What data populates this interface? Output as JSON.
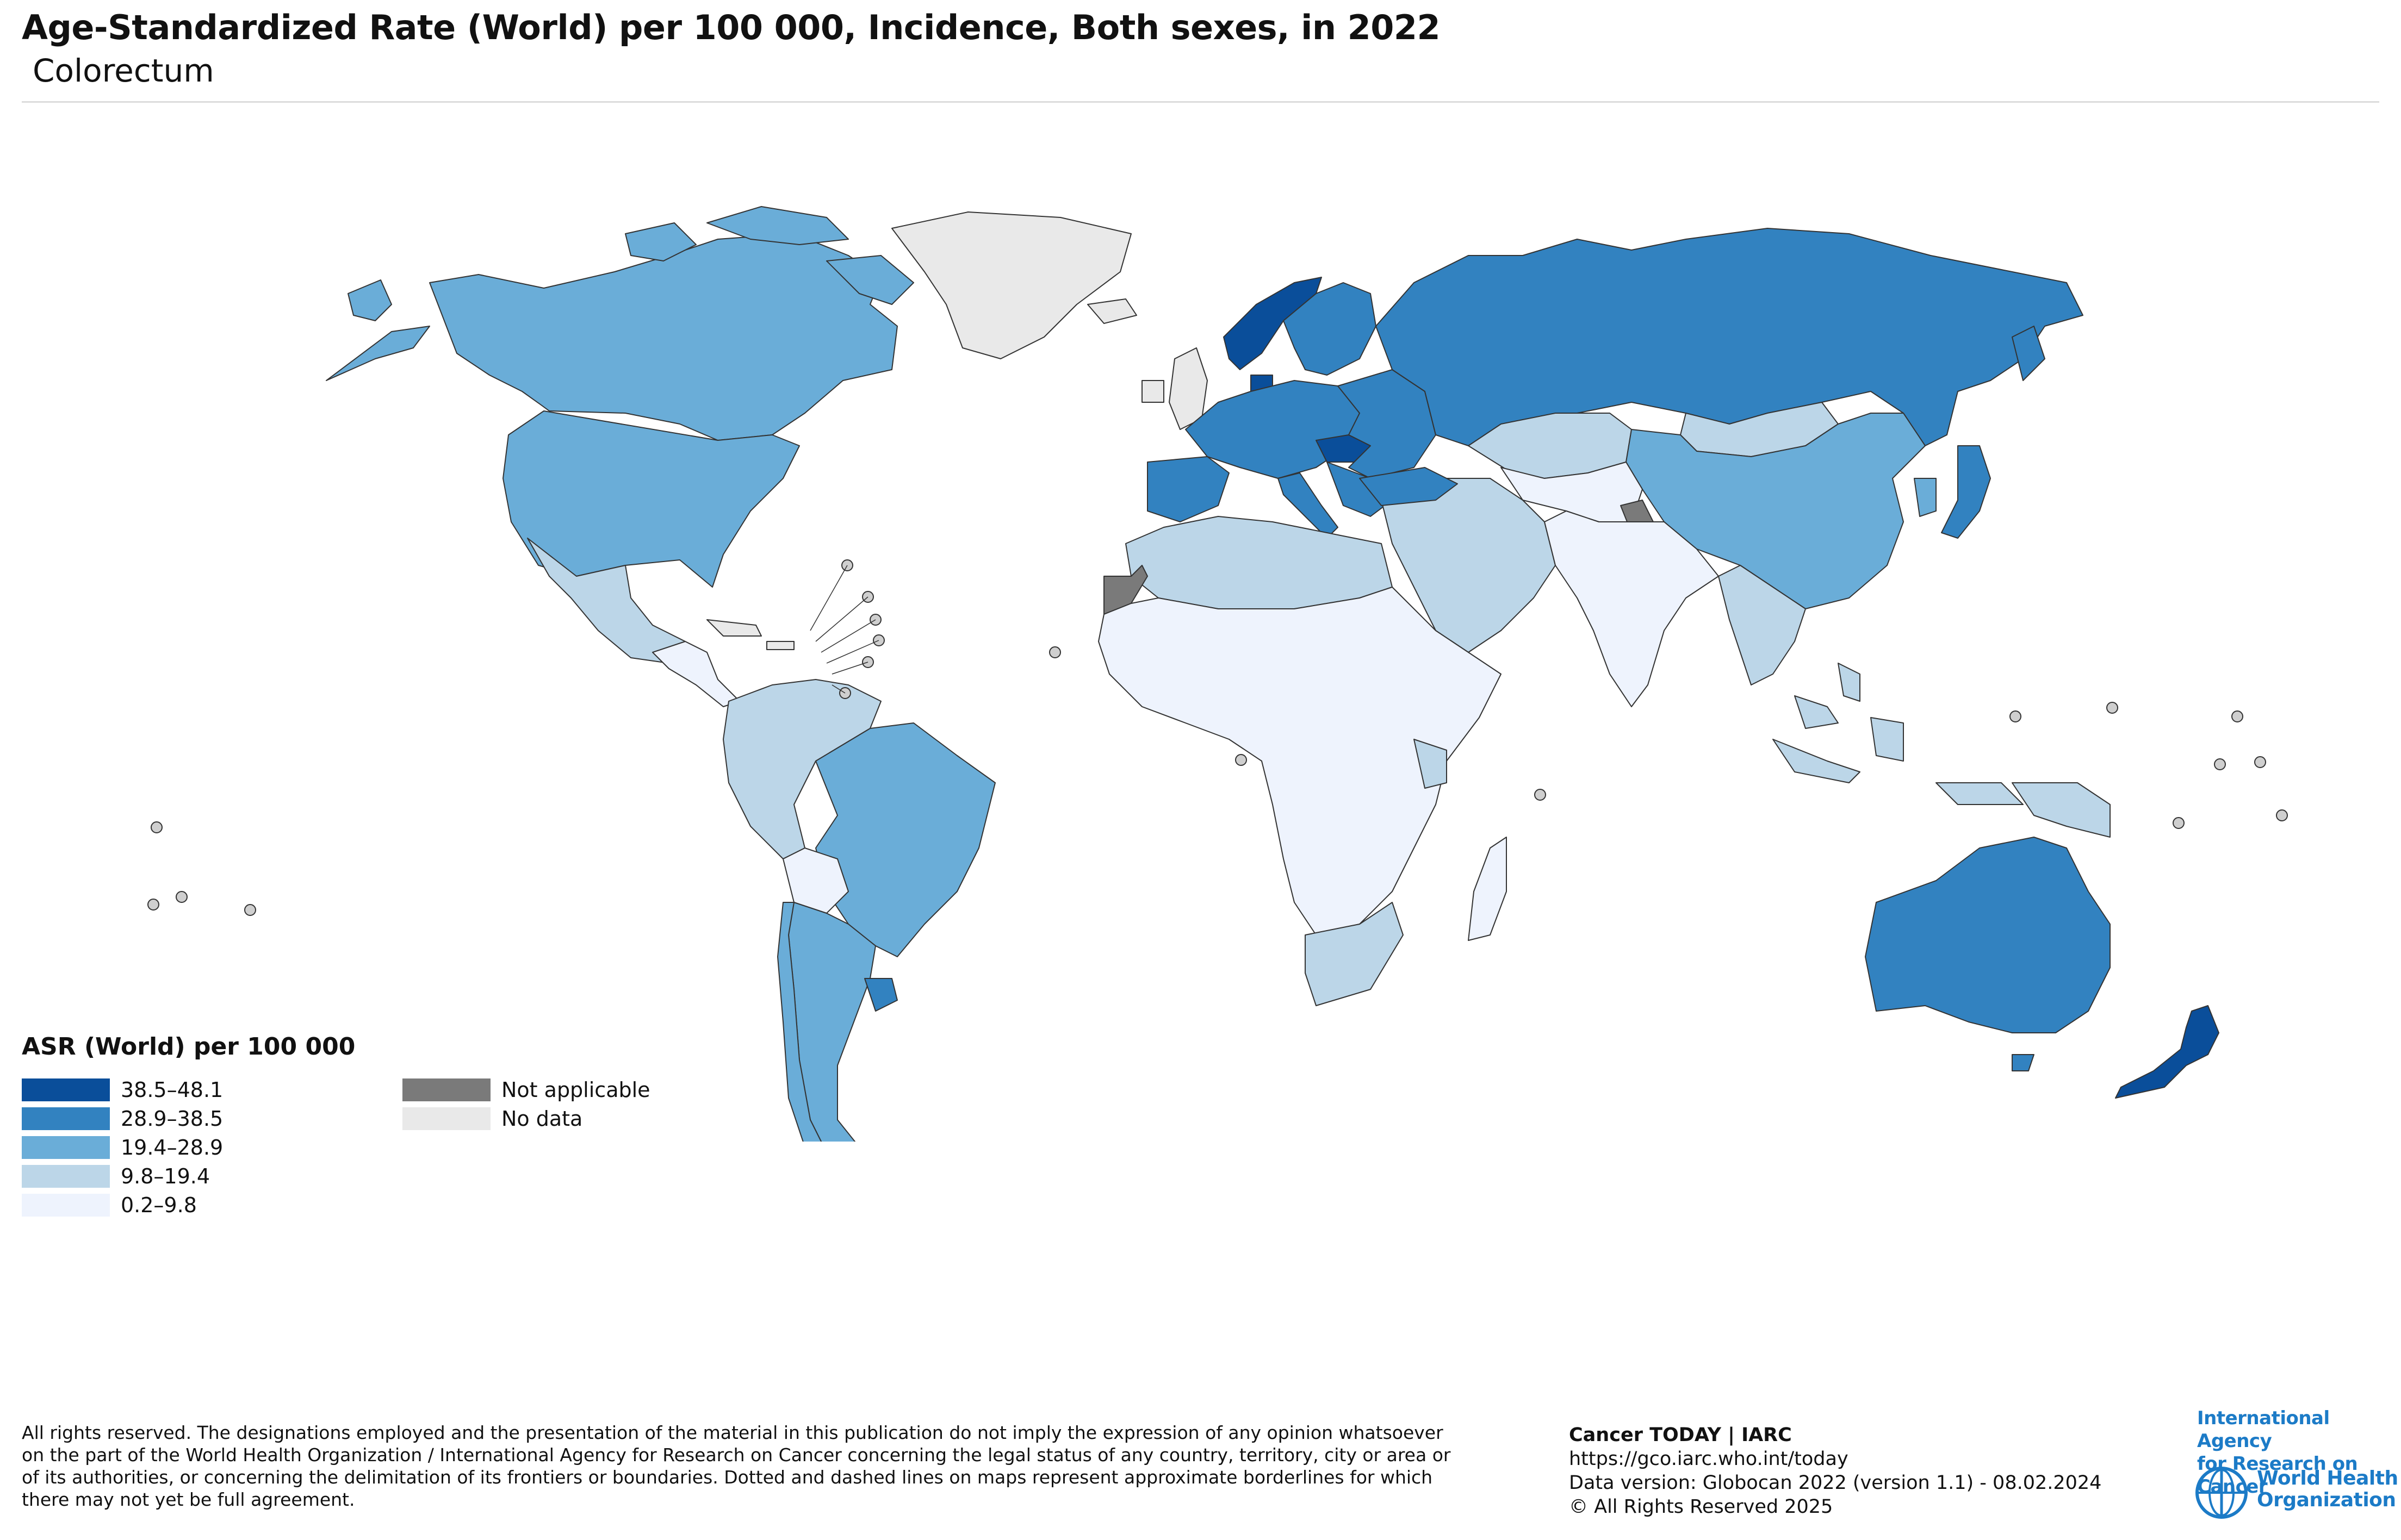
{
  "header": {
    "title": "Age-Standardized Rate (World) per 100 000, Incidence, Both sexes, in 2022",
    "subtitle": "Colorectum"
  },
  "legend": {
    "title": "ASR (World) per 100 000",
    "classes": [
      {
        "label": "38.5–48.1",
        "color": "#0a4e9a"
      },
      {
        "label": "28.9–38.5",
        "color": "#3282c0"
      },
      {
        "label": "19.4–28.9",
        "color": "#6aadd8"
      },
      {
        "label": "9.8–19.4",
        "color": "#bcd6e8"
      },
      {
        "label": "0.2–9.8",
        "color": "#eef3fd"
      }
    ],
    "special": [
      {
        "label": "Not applicable",
        "color": "#7a7a7a"
      },
      {
        "label": "No data",
        "color": "#e9e9e9"
      }
    ]
  },
  "map_regions": [
    {
      "name": "Canada",
      "class": "19.4–28.9"
    },
    {
      "name": "United States",
      "class": "19.4–28.9"
    },
    {
      "name": "Alaska",
      "class": "19.4–28.9"
    },
    {
      "name": "Greenland",
      "class": "No data"
    },
    {
      "name": "Mexico",
      "class": "9.8–19.4"
    },
    {
      "name": "Central America",
      "class": "0.2–9.8"
    },
    {
      "name": "Colombia / Venezuela / Ecuador / Peru",
      "class": "9.8–19.4"
    },
    {
      "name": "Brazil",
      "class": "19.4–28.9"
    },
    {
      "name": "Bolivia",
      "class": "0.2–9.8"
    },
    {
      "name": "Argentina",
      "class": "19.4–28.9"
    },
    {
      "name": "Chile",
      "class": "19.4–28.9"
    },
    {
      "name": "Uruguay",
      "class": "28.9–38.5"
    },
    {
      "name": "Western Europe",
      "class": "28.9–38.5"
    },
    {
      "name": "Norway / Denmark",
      "class": "38.5–48.1"
    },
    {
      "name": "Hungary / Slovakia",
      "class": "38.5–48.1"
    },
    {
      "name": "Russia",
      "class": "28.9–38.5"
    },
    {
      "name": "Kazakhstan / Mongolia",
      "class": "9.8–19.4"
    },
    {
      "name": "China",
      "class": "19.4–28.9"
    },
    {
      "name": "Japan",
      "class": "28.9–38.5"
    },
    {
      "name": "India / South Asia",
      "class": "0.2–9.8"
    },
    {
      "name": "Middle East",
      "class": "9.8–19.4"
    },
    {
      "name": "North Africa",
      "class": "9.8–19.4"
    },
    {
      "name": "Western Sahara",
      "class": "Not applicable"
    },
    {
      "name": "Sub-Saharan Africa",
      "class": "0.2–9.8"
    },
    {
      "name": "South Africa",
      "class": "9.8–19.4"
    },
    {
      "name": "Southeast Asia",
      "class": "9.8–19.4"
    },
    {
      "name": "Australia",
      "class": "28.9–38.5"
    },
    {
      "name": "New Zealand",
      "class": "38.5–48.1"
    },
    {
      "name": "Kashmir",
      "class": "Not applicable"
    }
  ],
  "footer": {
    "disclaimer_lines": [
      "All rights reserved. The designations employed and the presentation of the material in this publication do not imply the expression of any opinion whatsoever",
      "on the part of the World Health Organization / International Agency for Research on Cancer concerning the legal status of any country, territory, city or area or",
      "of its authorities, or concerning the delimitation of its frontiers or boundaries. Dotted and dashed lines on maps represent approximate borderlines for which",
      "there may not yet be full agreement."
    ],
    "source": "Cancer TODAY | IARC",
    "url": "https://gco.iarc.who.int/today",
    "version": "Data version: Globocan 2022 (version 1.1) - 08.02.2024",
    "copyright": "© All Rights Reserved 2025"
  },
  "logos": {
    "iarc_lines": [
      "International Agency",
      "for Research on Cancer"
    ],
    "who_lines": [
      "World Health",
      "Organization"
    ]
  }
}
